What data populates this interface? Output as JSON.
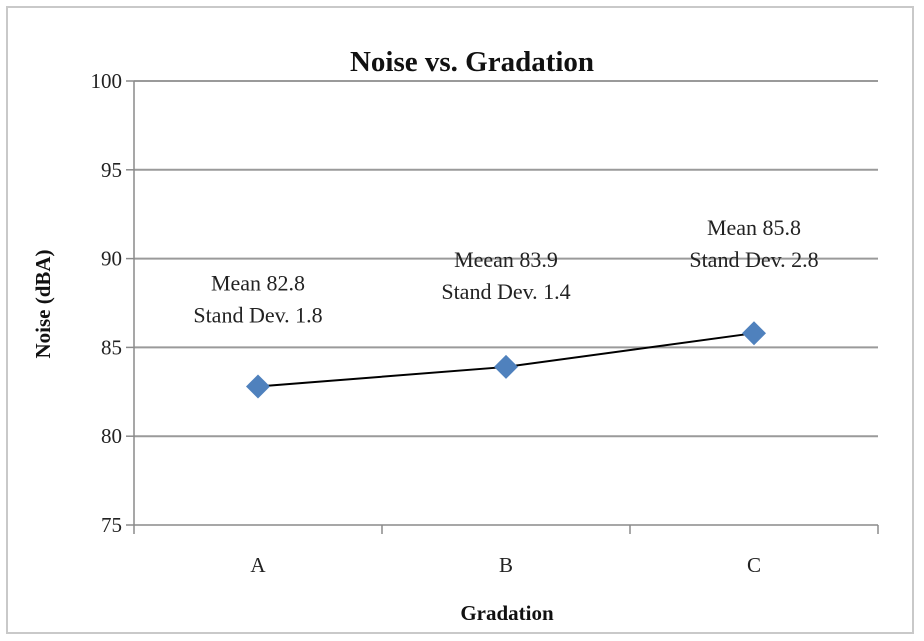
{
  "chart_data": {
    "type": "line",
    "title": "Noise vs. Gradation",
    "xlabel": "Gradation",
    "ylabel": "Noise (dBA)",
    "categories": [
      "A",
      "B",
      "C"
    ],
    "series": [
      {
        "values": [
          82.8,
          83.9,
          85.8
        ]
      }
    ],
    "ylim": [
      75,
      100
    ],
    "yticks": [
      75,
      80,
      85,
      90,
      95,
      100
    ],
    "grid": true,
    "marker": "diamond",
    "marker_color": "#4f81bd",
    "line_color": "#000000",
    "annotations": [
      {
        "category": "A",
        "lines": [
          "Mean 82.8",
          "Stand Dev. 1.8"
        ]
      },
      {
        "category": "B",
        "lines": [
          "Meean 83.9",
          "Stand Dev. 1.4"
        ]
      },
      {
        "category": "C",
        "lines": [
          "Mean 85.8",
          "Stand Dev. 2.8"
        ]
      }
    ]
  }
}
